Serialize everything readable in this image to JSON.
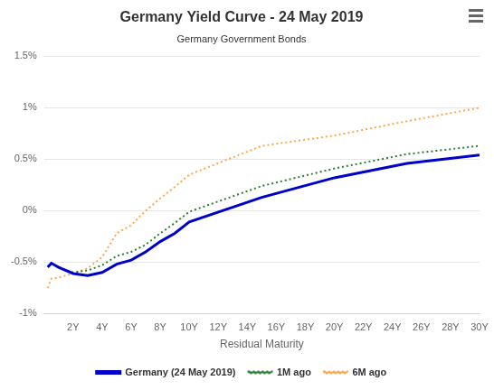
{
  "chart_data": {
    "type": "line",
    "title": "Germany Yield Curve - 24 May 2019",
    "subtitle": "Germany Government Bonds",
    "x_label": "Residual Maturity",
    "x": [
      0.25,
      0.5,
      1,
      2,
      3,
      4,
      5,
      6,
      7,
      8,
      9,
      10,
      15,
      20,
      25,
      30
    ],
    "series": [
      {
        "name": "Germany (24 May 2019)",
        "color": "#0000cc",
        "line_style": "solid",
        "values": [
          -0.55,
          -0.51,
          -0.55,
          -0.61,
          -0.63,
          -0.6,
          -0.52,
          -0.48,
          -0.4,
          -0.3,
          -0.22,
          -0.11,
          0.13,
          0.32,
          0.46,
          0.54
        ]
      },
      {
        "name": "1M ago",
        "color": "#2e7d32",
        "line_style": "dotted",
        "values": [
          -0.54,
          -0.51,
          -0.55,
          -0.6,
          -0.58,
          -0.53,
          -0.44,
          -0.4,
          -0.33,
          -0.22,
          -0.12,
          -0.01,
          0.24,
          0.41,
          0.55,
          0.63
        ]
      },
      {
        "name": "6M ago",
        "color": "#ffa64d",
        "line_style": "dotted",
        "values": [
          -0.75,
          -0.66,
          -0.65,
          -0.61,
          -0.56,
          -0.45,
          -0.22,
          -0.14,
          0.0,
          0.12,
          0.23,
          0.35,
          0.63,
          0.73,
          0.87,
          1.0
        ]
      }
    ],
    "xlim": [
      0,
      30
    ],
    "xticks": [
      {
        "value": 2,
        "label": "2Y"
      },
      {
        "value": 4,
        "label": "4Y"
      },
      {
        "value": 6,
        "label": "6Y"
      },
      {
        "value": 8,
        "label": "8Y"
      },
      {
        "value": 10,
        "label": "10Y"
      },
      {
        "value": 12,
        "label": "12Y"
      },
      {
        "value": 14,
        "label": "14Y"
      },
      {
        "value": 16,
        "label": "16Y"
      },
      {
        "value": 18,
        "label": "18Y"
      },
      {
        "value": 20,
        "label": "20Y"
      },
      {
        "value": 22,
        "label": "22Y"
      },
      {
        "value": 24,
        "label": "24Y"
      },
      {
        "value": 26,
        "label": "26Y"
      },
      {
        "value": 28,
        "label": "28Y"
      },
      {
        "value": 30,
        "label": "30Y"
      }
    ],
    "ylim": [
      -1,
      1.5
    ],
    "yticks": [
      {
        "value": -1,
        "label": "-1%"
      },
      {
        "value": -0.5,
        "label": "-0.5%"
      },
      {
        "value": 0,
        "label": "0%"
      },
      {
        "value": 0.5,
        "label": "0.5%"
      },
      {
        "value": 1,
        "label": "1%"
      },
      {
        "value": 1.5,
        "label": "1.5%"
      }
    ],
    "grid": true,
    "legend": "bottom"
  }
}
